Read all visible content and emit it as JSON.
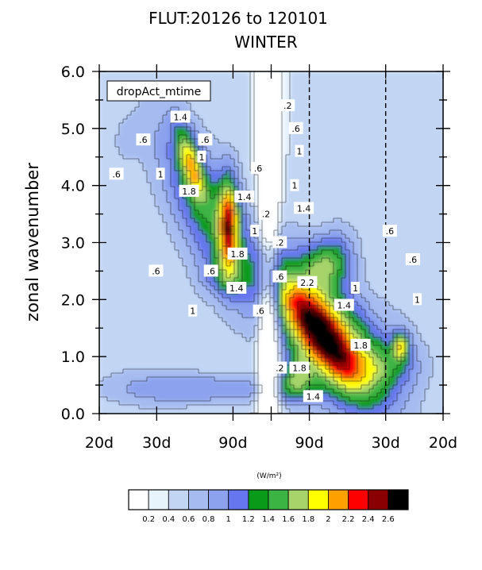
{
  "title_line1": "FLUT:20126 to 120101",
  "title_line2": "WINTER",
  "inset_label": "dropAct_mtime",
  "ylabel": "zonal wavenumber",
  "units_label": "(W/m²)",
  "chart_data": {
    "type": "heatmap",
    "title": "FLUT:20126 to 120101 WINTER",
    "ylabel": "zonal wavenumber",
    "ylim": [
      0,
      6
    ],
    "yticks": [
      "0.0",
      "1.0",
      "2.0",
      "3.0",
      "4.0",
      "5.0",
      "6.0"
    ],
    "xticks": [
      "20d",
      "30d",
      "90d",
      "",
      "90d",
      "30d",
      "20d"
    ],
    "x_positions": [
      -0.05,
      -0.0333,
      -0.0111,
      0,
      0.0111,
      0.0333,
      0.05
    ],
    "dashed_lines_at": [
      0.0111,
      0.0333
    ],
    "legend_units": "(W/m²)",
    "levels": [
      0.2,
      0.4,
      0.6,
      0.8,
      1,
      1.2,
      1.4,
      1.6,
      1.8,
      2,
      2.2,
      2.4,
      2.6
    ],
    "level_labels": [
      "0.2",
      "0.4",
      "0.6",
      "0.8",
      "1",
      "1.2",
      "1.4",
      "1.6",
      "1.8",
      "2",
      "2.2",
      "2.4",
      "2.6"
    ],
    "colors": [
      "#ffffff",
      "#e8f4fc",
      "#c2d6f4",
      "#a6bcf0",
      "#8ca2ee",
      "#6676ee",
      "#0a9a1a",
      "#3cb444",
      "#a6d46a",
      "#ffff00",
      "#ffa000",
      "#ff0000",
      "#8a0000",
      "#000000"
    ],
    "contour_labels": [
      {
        "text": ".6",
        "x": -0.045,
        "y": 4.2
      },
      {
        "text": ".6",
        "x": -0.0372,
        "y": 4.8
      },
      {
        "text": "1",
        "x": -0.0322,
        "y": 4.2
      },
      {
        "text": "1.4",
        "x": -0.0264,
        "y": 5.2
      },
      {
        "text": ".6",
        "x": -0.0192,
        "y": 4.8
      },
      {
        "text": "1",
        "x": -0.0202,
        "y": 4.5
      },
      {
        "text": "1.8",
        "x": -0.0239,
        "y": 3.9
      },
      {
        "text": "1.4",
        "x": -0.0078,
        "y": 3.8
      },
      {
        "text": "1",
        "x": -0.0048,
        "y": 3.2
      },
      {
        "text": "1.8",
        "x": -0.0098,
        "y": 2.8
      },
      {
        "text": "1.4",
        "x": -0.0101,
        "y": 2.2
      },
      {
        "text": ".6",
        "x": -0.0175,
        "y": 2.5
      },
      {
        "text": "1",
        "x": -0.0228,
        "y": 1.8
      },
      {
        "text": ".6",
        "x": -0.0038,
        "y": 4.3
      },
      {
        "text": ".2",
        "x": -0.0015,
        "y": 3.5
      },
      {
        "text": ".2",
        "x": 0.0025,
        "y": 3.0
      },
      {
        "text": ".6",
        "x": 0.0025,
        "y": 2.4
      },
      {
        "text": ".6",
        "x": -0.0032,
        "y": 1.8
      },
      {
        "text": ".2",
        "x": 0.0048,
        "y": 5.4
      },
      {
        "text": ".6",
        "x": 0.0072,
        "y": 5.0
      },
      {
        "text": "1",
        "x": 0.0082,
        "y": 4.6
      },
      {
        "text": "1",
        "x": 0.0068,
        "y": 4.0
      },
      {
        "text": "1.4",
        "x": 0.0095,
        "y": 3.6
      },
      {
        "text": "2.2",
        "x": 0.0105,
        "y": 2.3
      },
      {
        "text": "1.8",
        "x": 0.0082,
        "y": 0.8
      },
      {
        "text": "1.4",
        "x": 0.0122,
        "y": 0.3
      },
      {
        "text": "1",
        "x": 0.0245,
        "y": 2.2
      },
      {
        "text": "1.4",
        "x": 0.0212,
        "y": 1.9
      },
      {
        "text": "1.8",
        "x": 0.026,
        "y": 1.2
      },
      {
        "text": ".6",
        "x": 0.0345,
        "y": 3.2
      },
      {
        "text": ".6",
        "x": 0.0412,
        "y": 2.7
      },
      {
        "text": "1",
        "x": 0.0425,
        "y": 2.0
      },
      {
        "text": ".6",
        "x": -0.0335,
        "y": 2.5
      },
      {
        "text": ".2",
        "x": 0.0025,
        "y": 0.8
      }
    ]
  }
}
